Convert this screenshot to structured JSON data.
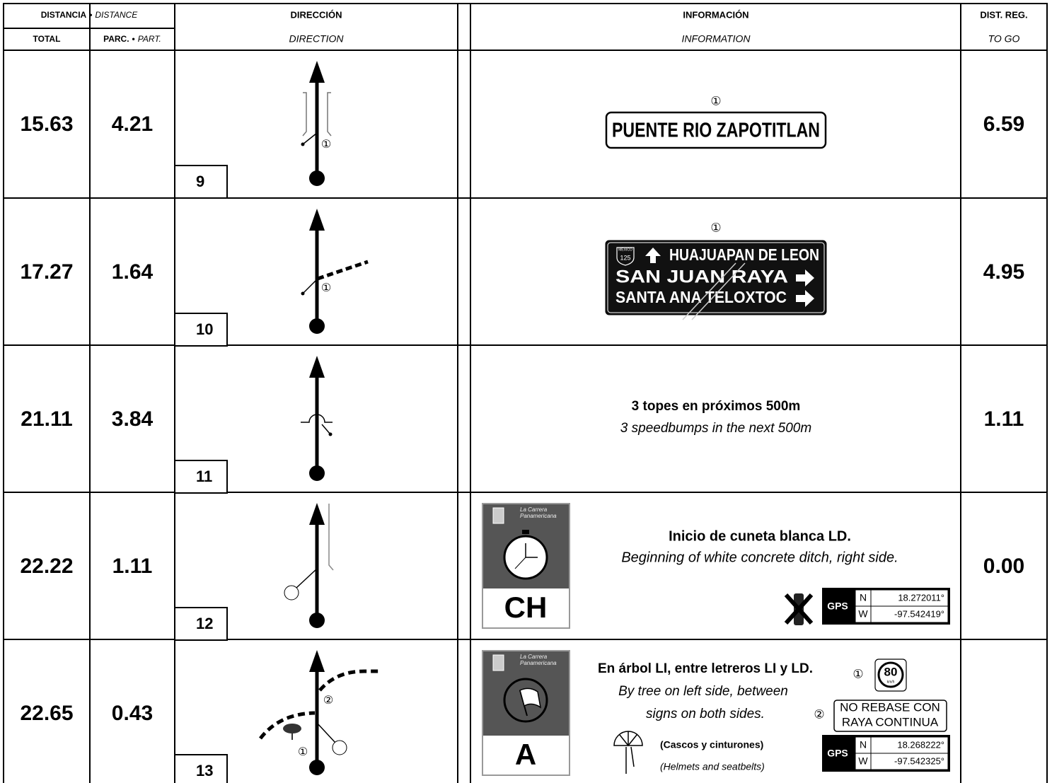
{
  "header": {
    "distance": "DISTANCIA",
    "separator": "•",
    "distance_en": "DISTANCE",
    "direction": "DIRECCIÓN",
    "information": "INFORMACIÓN",
    "dist_reg": "DIST. REG.",
    "total": "TOTAL",
    "partial": "PARC.",
    "partial_en": "PART.",
    "direction_en": "DIRECTION",
    "information_en": "INFORMATION",
    "to_go": "TO GO"
  },
  "rows": [
    {
      "total": "15.63",
      "partial": "4.21",
      "number": "9",
      "to_go": "6.59",
      "diagram_markers": [
        "①"
      ],
      "info": {
        "marker": "①",
        "sign": "PUENTE RIO ZAPOTITLAN"
      }
    },
    {
      "total": "17.27",
      "partial": "1.64",
      "number": "10",
      "to_go": "4.95",
      "diagram_markers": [
        "①"
      ],
      "info": {
        "marker": "①",
        "shield": [
          "MEXICO",
          "125"
        ],
        "sign_lines": [
          "HUAJUAPAN DE LEON",
          "SAN JUAN RAYA",
          "SANTA ANA TELOXTOC"
        ]
      }
    },
    {
      "total": "21.11",
      "partial": "3.84",
      "number": "11",
      "to_go": "1.11",
      "info": {
        "text": "3 topes en próximos 500m",
        "text_en": "3 speedbumps in the next 500m"
      }
    },
    {
      "total": "22.22",
      "partial": "1.11",
      "number": "12",
      "to_go": "0.00",
      "info": {
        "card": {
          "brand": [
            "La Carrera",
            "Panamericana"
          ],
          "letter": "CH"
        },
        "text": "Inicio de cuneta blanca LD.",
        "text_en": "Beginning of white concrete ditch, right side.",
        "gps": {
          "label": "GPS",
          "n": "N",
          "lat": "18.272011°",
          "w": "W",
          "lon": "-97.542419°"
        }
      }
    },
    {
      "total": "22.65",
      "partial": "0.43",
      "number": "13",
      "diagram_markers": [
        "②",
        "①"
      ],
      "info": {
        "card": {
          "brand": [
            "La Carrera",
            "Panamericana"
          ],
          "letter": "A"
        },
        "text": "En árbol LI, entre letreros LI y LD.",
        "text_en": [
          "By tree on left side, between",
          "signs on both sides."
        ],
        "speed_sign": {
          "marker": "①",
          "speed": "80",
          "unit": "km/h"
        },
        "pass_sign": {
          "marker": "②",
          "lines": [
            "NO REBASE CON",
            "RAYA CONTINUA"
          ]
        },
        "note": "(Cascos y cinturones)",
        "note_en": "(Helmets and seatbelts)",
        "gps": {
          "label": "GPS",
          "n": "N",
          "lat": "18.268222°",
          "w": "W",
          "lon": "-97.542325°"
        }
      }
    }
  ]
}
